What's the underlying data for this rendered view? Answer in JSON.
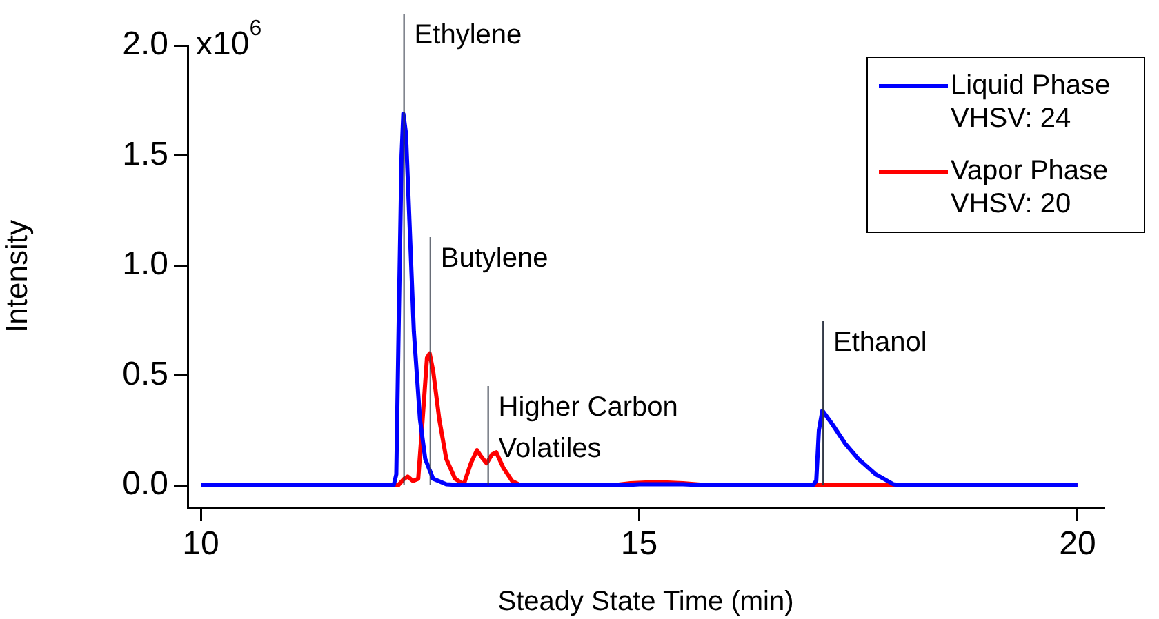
{
  "chart_data": {
    "type": "line",
    "xlabel": "Steady State Time (min)",
    "ylabel": "Intensity",
    "xlim": [
      9.85,
      20.3
    ],
    "xticks": [
      10,
      15,
      20
    ],
    "ylim": [
      -0.1,
      2
    ],
    "yticks": [
      {
        "value": 0,
        "label": "0.0"
      },
      {
        "value": 0.5,
        "label": "0.5"
      },
      {
        "value": 1,
        "label": "1.0"
      },
      {
        "value": 1.5,
        "label": "1.5"
      },
      {
        "value": 2,
        "label": "2.0"
      }
    ],
    "annotations": [
      "x10$^{6}$"
    ],
    "grid": false,
    "legend": "top right",
    "marker": "none",
    "line_style": "solid",
    "series": [
      {
        "name": "Liquid Phase VHSV: 24",
        "color": "#0000ff",
        "x": [
          10,
          12.2,
          12.23,
          12.26,
          12.29,
          12.31,
          12.34,
          12.38,
          12.43,
          12.5,
          12.56,
          12.65,
          12.8,
          13,
          14.8,
          15,
          15.5,
          15.8,
          16.98,
          17.02,
          17.05,
          17.09,
          17.2,
          17.35,
          17.5,
          17.7,
          17.9,
          18,
          20
        ],
        "values": [
          0,
          0,
          0.05,
          0.8,
          1.5,
          1.69,
          1.6,
          1.2,
          0.7,
          0.3,
          0.12,
          0.03,
          0.005,
          0,
          0,
          0.005,
          0.005,
          0,
          0,
          0.02,
          0.25,
          0.34,
          0.28,
          0.19,
          0.12,
          0.05,
          0.005,
          0,
          0
        ]
      },
      {
        "name": "Vapor Phase VHSV: 20",
        "color": "#ff0000",
        "x": [
          10,
          12.25,
          12.32,
          12.36,
          12.42,
          12.48,
          12.53,
          12.58,
          12.61,
          12.65,
          12.72,
          12.8,
          12.9,
          13,
          13.08,
          13.15,
          13.2,
          13.26,
          13.32,
          13.37,
          13.45,
          13.55,
          13.65,
          14.7,
          14.9,
          15.2,
          15.5,
          15.8,
          20
        ],
        "values": [
          0,
          0,
          0.03,
          0.04,
          0.02,
          0.03,
          0.3,
          0.58,
          0.6,
          0.52,
          0.3,
          0.12,
          0.03,
          0.005,
          0.1,
          0.16,
          0.13,
          0.1,
          0.14,
          0.15,
          0.08,
          0.02,
          0,
          0,
          0.01,
          0.015,
          0.01,
          0,
          0
        ]
      }
    ],
    "ref_lines": [
      {
        "axis": "x",
        "value": 12.31,
        "label": "Ethylene"
      },
      {
        "axis": "x",
        "value": 12.61,
        "label": "Butylene"
      },
      {
        "axis": "x",
        "value": 13.27,
        "label": "Higher Carbon Volatiles"
      },
      {
        "axis": "x",
        "value": 17.09,
        "label": "Ethanol"
      }
    ]
  }
}
